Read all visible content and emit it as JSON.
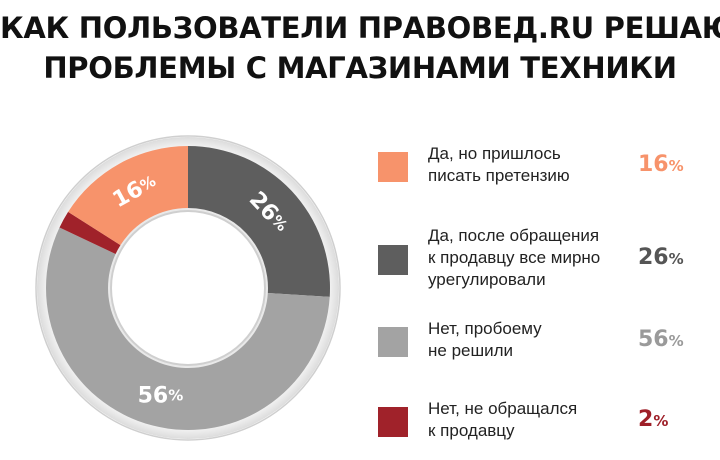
{
  "title": {
    "line1": "КАК ПОЛЬЗОВАТЕЛИ ПРАВОВЕД.RU РЕШАЮТ",
    "line2": "ПРОБЛЕМЫ С МАГАЗИНАМИ ТЕХНИКИ"
  },
  "chart_data": {
    "type": "pie",
    "variant": "donut",
    "title": "КАК ПОЛЬЗОВАТЕЛИ ПРАВОВЕД.RU РЕШАЮТ ПРОБЛЕМЫ С МАГАЗИНАМИ ТЕХНИКИ",
    "unit": "%",
    "legend_position": "right",
    "slices": [
      {
        "label_lines": [
          "Да, но пришлось",
          "писать претензию"
        ],
        "value": 16,
        "color": "#f7936b",
        "value_color": "#f7936b",
        "value_text": "16",
        "in_chart_text": "16"
      },
      {
        "label_lines": [
          "Да, после обращения",
          "к продавцу все мирно",
          "урегулировали"
        ],
        "value": 26,
        "color": "#5e5e5e",
        "value_color": "#555555",
        "value_text": "26",
        "in_chart_text": "26"
      },
      {
        "label_lines": [
          "Нет, пробоему",
          "не решили"
        ],
        "value": 56,
        "color": "#a3a3a3",
        "value_color": "#9a9a9a",
        "value_text": "56",
        "in_chart_text": "56"
      },
      {
        "label_lines": [
          "Нет, не обращался",
          "к продавцу"
        ],
        "value": 2,
        "color": "#a0222a",
        "value_color": "#9e1f28",
        "value_text": "2",
        "in_chart_text": ""
      }
    ],
    "percent_sign": "%"
  }
}
